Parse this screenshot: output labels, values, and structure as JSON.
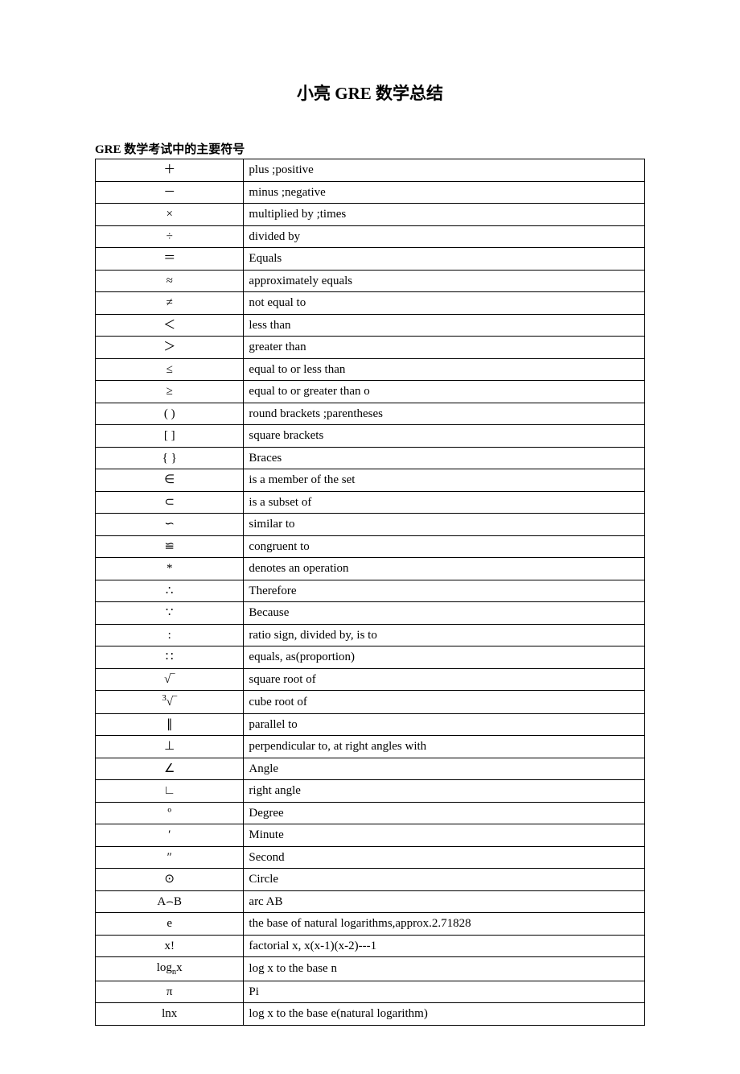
{
  "title": "小亮  GRE 数学总结",
  "subtitle": "GRE 数学考试中的主要符号",
  "table": {
    "rows": [
      {
        "symbol": "＋",
        "desc": "plus ;positive"
      },
      {
        "symbol": "－",
        "desc": "minus ;negative"
      },
      {
        "symbol": "×",
        "desc": "multiplied by ;times"
      },
      {
        "symbol": "÷",
        "desc": "divided by"
      },
      {
        "symbol": "＝",
        "desc": "Equals"
      },
      {
        "symbol": "≈",
        "desc": "approximately equals"
      },
      {
        "symbol": "≠",
        "desc": "not equal to"
      },
      {
        "symbol": "＜",
        "desc": "less than"
      },
      {
        "symbol": "＞",
        "desc": "greater than"
      },
      {
        "symbol": "≤",
        "desc": "equal to or less than"
      },
      {
        "symbol": "≥",
        "desc": "equal to or greater than o"
      },
      {
        "symbol": "(      )",
        "desc": "round brackets ;parentheses"
      },
      {
        "symbol": "[      ]",
        "desc": "square brackets"
      },
      {
        "symbol": "{      }",
        "desc": "Braces"
      },
      {
        "symbol": "∈",
        "desc": "is a member of the set"
      },
      {
        "symbol": "⊂",
        "desc": "is a subset of"
      },
      {
        "symbol": "∽",
        "desc": "similar to"
      },
      {
        "symbol": "≌",
        "desc": "congruent to"
      },
      {
        "symbol": "*",
        "desc": "denotes an operation"
      },
      {
        "symbol": "∴",
        "desc": "Therefore"
      },
      {
        "symbol": "∵",
        "desc": "Because"
      },
      {
        "symbol": ":",
        "desc": "ratio sign, divided by, is to"
      },
      {
        "symbol": "∷",
        "desc": "equals, as(proportion)"
      },
      {
        "symbol": "√‾",
        "desc": "square root of"
      },
      {
        "symbol_html": "<span class='sup'>3</span>√‾",
        "desc": "cube root of"
      },
      {
        "symbol": "∥",
        "desc": "parallel to"
      },
      {
        "symbol": "⊥",
        "desc": "perpendicular to, at right angles with"
      },
      {
        "symbol": "∠",
        "desc": "Angle"
      },
      {
        "symbol": "∟",
        "desc": "right angle"
      },
      {
        "symbol": "º",
        "desc": "Degree"
      },
      {
        "symbol": "′",
        "desc": "Minute"
      },
      {
        "symbol": "″",
        "desc": "Second"
      },
      {
        "symbol": "⊙",
        "desc": "Circle"
      },
      {
        "symbol": "A⌢B",
        "desc": "arc AB"
      },
      {
        "symbol": "e",
        "desc": "the base of natural logarithms,approx.2.71828"
      },
      {
        "symbol": "x!",
        "desc": "factorial x, x(x-1)(x-2)---1"
      },
      {
        "symbol_html": "log<span class='sub'>n</span>x",
        "desc": "log x to the base n"
      },
      {
        "symbol": "π",
        "desc": "Pi"
      },
      {
        "symbol": "lnx",
        "desc": "log x to the base e(natural logarithm)"
      }
    ]
  }
}
